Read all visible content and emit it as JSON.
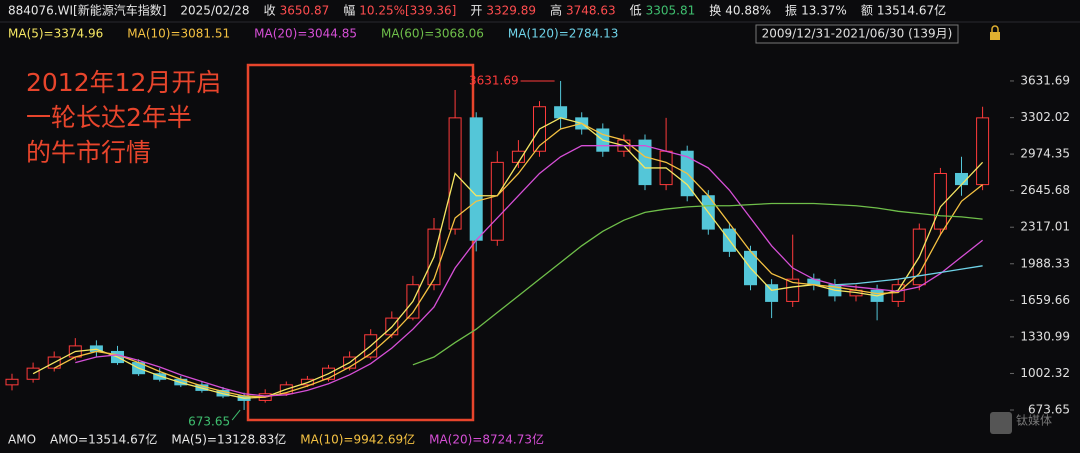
{
  "chart_data": {
    "type": "candlestick",
    "header": [
      {
        "text": "884076.WI[新能源汽车指数]",
        "color": "#e8e8e8"
      },
      {
        "text": "2025/02/28",
        "color": "#e8e8e8"
      },
      {
        "text": "收",
        "color": "#e8e8e8"
      },
      {
        "text": "3650.87",
        "color": "#ff4d4f"
      },
      {
        "text": "幅",
        "color": "#e8e8e8"
      },
      {
        "text": "10.25%[339.36]",
        "color": "#ff4d4f"
      },
      {
        "text": "开",
        "color": "#e8e8e8"
      },
      {
        "text": "3329.89",
        "color": "#ff4d4f"
      },
      {
        "text": "高",
        "color": "#e8e8e8"
      },
      {
        "text": "3748.63",
        "color": "#ff4d4f"
      },
      {
        "text": "低",
        "color": "#e8e8e8"
      },
      {
        "text": "3305.81",
        "color": "#3fbf6f"
      },
      {
        "text": "换",
        "color": "#e8e8e8"
      },
      {
        "text": "40.88%",
        "color": "#e8e8e8"
      },
      {
        "text": "振",
        "color": "#e8e8e8"
      },
      {
        "text": "13.37%",
        "color": "#e8e8e8"
      },
      {
        "text": "额",
        "color": "#e8e8e8"
      },
      {
        "text": "13514.67亿",
        "color": "#e8e8e8"
      }
    ],
    "ma_labels": [
      {
        "text": "MA(5)=3374.96",
        "color": "#f5e663"
      },
      {
        "text": "MA(10)=3081.51",
        "color": "#f5c242"
      },
      {
        "text": "MA(20)=3044.85",
        "color": "#d64fd6"
      },
      {
        "text": "MA(60)=3068.06",
        "color": "#6fbf4a"
      },
      {
        "text": "MA(120)=2784.13",
        "color": "#6fd3e8"
      }
    ],
    "range_label": "2009/12/31-2021/06/30 (139月)",
    "annotation": [
      "2012年12月开启",
      "一轮长达2年半",
      "的牛市行情"
    ],
    "max_label": "3631.69",
    "min_label": "673.65",
    "footer": [
      {
        "text": "AMO",
        "color": "#e8e8e8"
      },
      {
        "text": "AMO=13514.67亿",
        "color": "#e8e8e8"
      },
      {
        "text": "MA(5)=13128.83亿",
        "color": "#e8e8e8"
      },
      {
        "text": "MA(10)=9942.69亿",
        "color": "#f5c242"
      },
      {
        "text": "MA(20)=8724.73亿",
        "color": "#d64fd6"
      }
    ],
    "watermark": "钛媒体",
    "ylim": [
      494,
      3910
    ],
    "yticks": [
      673.65,
      1002.32,
      1330.99,
      1659.66,
      1988.33,
      2317.01,
      2645.68,
      2974.35,
      3302.02,
      3631.69
    ],
    "up_color": "#ff3b3b",
    "down_color": "#54c6d8",
    "open": [
      900,
      950,
      1050,
      1150,
      1250,
      1200,
      1100,
      1000,
      950,
      900,
      850,
      800,
      760,
      820,
      900,
      950,
      1050,
      1150,
      1350,
      1500,
      1800,
      2300,
      3300,
      2200,
      2900,
      3000,
      3400,
      3300,
      3200,
      3000,
      3100,
      2700,
      3000,
      2600,
      2300,
      2100,
      1800,
      1650,
      1850,
      1800,
      1700,
      1750,
      1650,
      1800,
      2300,
      2800,
      2700
    ],
    "close": [
      950,
      1050,
      1150,
      1250,
      1200,
      1100,
      1000,
      950,
      900,
      850,
      800,
      760,
      820,
      900,
      950,
      1050,
      1150,
      1350,
      1500,
      1800,
      2300,
      3300,
      2200,
      2900,
      3000,
      3400,
      3300,
      3200,
      3000,
      3100,
      2700,
      3000,
      2600,
      2300,
      2100,
      1800,
      1650,
      1850,
      1800,
      1700,
      1750,
      1650,
      1800,
      2300,
      2800,
      2700,
      3300
    ],
    "high": [
      1000,
      1100,
      1200,
      1320,
      1300,
      1250,
      1130,
      1050,
      980,
      930,
      880,
      830,
      860,
      930,
      980,
      1080,
      1200,
      1400,
      1560,
      1880,
      2400,
      3550,
      3350,
      3000,
      3100,
      3450,
      3631.69,
      3350,
      3250,
      3150,
      3150,
      3300,
      3050,
      2650,
      2350,
      2150,
      1850,
      2250,
      1900,
      1850,
      1800,
      1800,
      1850,
      2350,
      2850,
      2950,
      3400
    ],
    "low": [
      850,
      920,
      1020,
      1120,
      1150,
      1080,
      980,
      930,
      880,
      830,
      780,
      673.65,
      740,
      800,
      880,
      930,
      1030,
      1130,
      1320,
      1480,
      1750,
      2250,
      2100,
      2150,
      2850,
      2950,
      3200,
      3150,
      2950,
      2950,
      2650,
      2650,
      2550,
      2250,
      2050,
      1750,
      1500,
      1600,
      1750,
      1650,
      1650,
      1480,
      1600,
      1750,
      2250,
      2600,
      2650
    ],
    "series": [
      {
        "name": "MA(5)",
        "color": "#f5e663",
        "values": [
          null,
          1000,
          1100,
          1200,
          1220,
          1150,
          1050,
          980,
          920,
          870,
          820,
          780,
          790,
          860,
          920,
          1000,
          1100,
          1250,
          1420,
          1650,
          2050,
          2800,
          2600,
          2600,
          2900,
          3200,
          3300,
          3250,
          3100,
          3050,
          2850,
          2850,
          2700,
          2450,
          2200,
          1950,
          1750,
          1780,
          1800,
          1750,
          1730,
          1700,
          1750,
          2050,
          2500,
          2700,
          2900
        ]
      },
      {
        "name": "MA(10)",
        "color": "#f5c242",
        "values": [
          null,
          null,
          1050,
          1150,
          1200,
          1170,
          1100,
          1020,
          950,
          890,
          840,
          800,
          790,
          830,
          890,
          960,
          1060,
          1180,
          1350,
          1550,
          1850,
          2400,
          2550,
          2600,
          2800,
          3050,
          3200,
          3250,
          3150,
          3100,
          2950,
          2900,
          2800,
          2600,
          2350,
          2100,
          1900,
          1820,
          1800,
          1780,
          1750,
          1720,
          1730,
          1900,
          2250,
          2550,
          2700
        ]
      },
      {
        "name": "MA(20)",
        "color": "#d64fd6",
        "values": [
          null,
          null,
          null,
          1100,
          1150,
          1170,
          1120,
          1060,
          990,
          930,
          870,
          820,
          800,
          810,
          850,
          910,
          990,
          1090,
          1230,
          1400,
          1600,
          1950,
          2200,
          2400,
          2600,
          2800,
          2950,
          3050,
          3050,
          3050,
          3050,
          3000,
          2950,
          2850,
          2650,
          2400,
          2150,
          1950,
          1850,
          1800,
          1780,
          1760,
          1740,
          1780,
          1900,
          2050,
          2200
        ]
      },
      {
        "name": "MA(60)",
        "color": "#6fbf4a",
        "values": [
          null,
          null,
          null,
          null,
          null,
          null,
          null,
          null,
          null,
          null,
          null,
          null,
          null,
          null,
          null,
          null,
          null,
          null,
          null,
          1080,
          1150,
          1280,
          1400,
          1550,
          1700,
          1850,
          2000,
          2150,
          2280,
          2380,
          2450,
          2480,
          2500,
          2510,
          2510,
          2520,
          2530,
          2530,
          2530,
          2520,
          2510,
          2490,
          2460,
          2440,
          2420,
          2410,
          2390
        ]
      },
      {
        "name": "MA(120)",
        "color": "#6fd3e8",
        "values": [
          null,
          null,
          null,
          null,
          null,
          null,
          null,
          null,
          null,
          null,
          null,
          null,
          null,
          null,
          null,
          null,
          null,
          null,
          null,
          null,
          null,
          null,
          null,
          null,
          null,
          null,
          null,
          null,
          null,
          null,
          null,
          null,
          null,
          null,
          null,
          null,
          null,
          null,
          null,
          1800,
          1810,
          1830,
          1850,
          1880,
          1910,
          1940,
          1970
        ]
      }
    ]
  }
}
